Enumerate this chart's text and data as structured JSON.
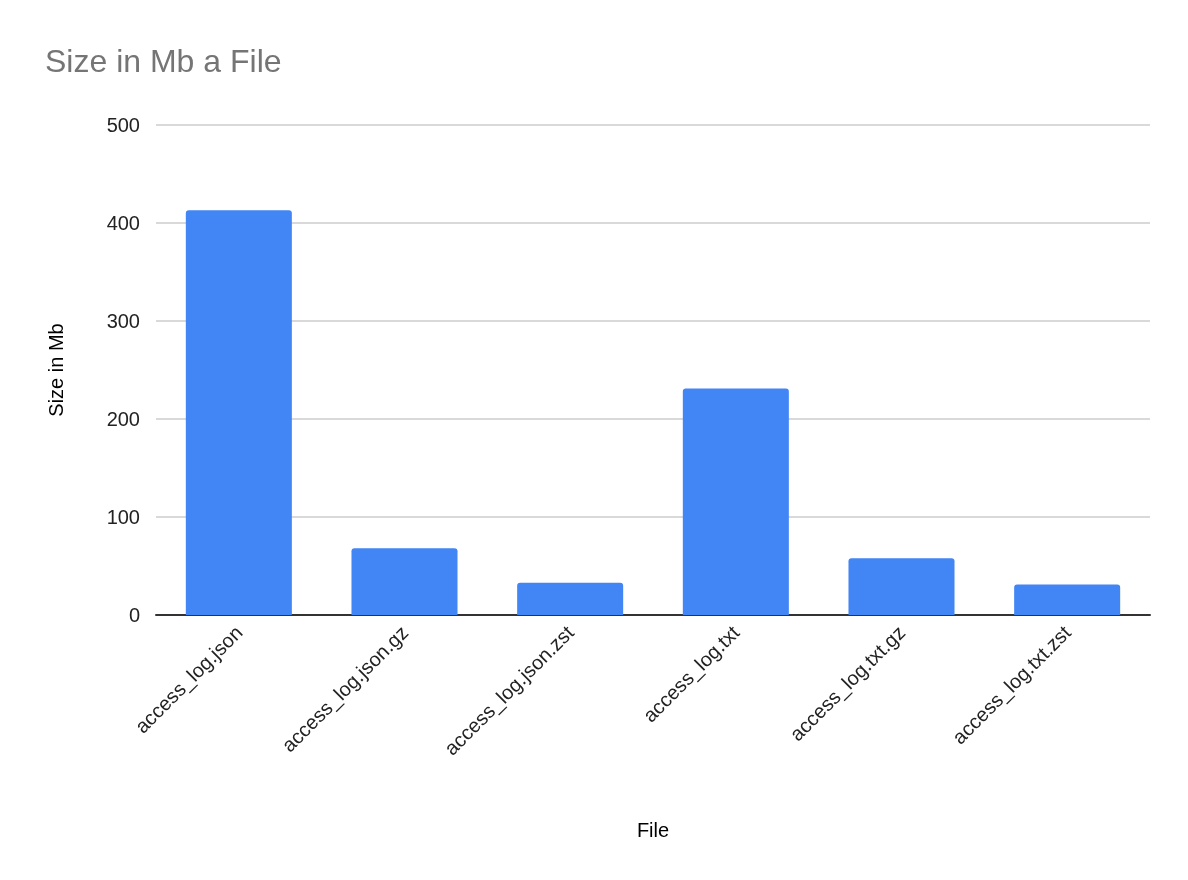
{
  "chart_data": {
    "type": "bar",
    "title": "Size in Mb a File",
    "xlabel": "File",
    "ylabel": "Size in Mb",
    "categories": [
      "access_log.json",
      "access_log.json.gz",
      "access_log.json.zst",
      "access_log.txt",
      "access_log.txt.gz",
      "access_log.txt.zst"
    ],
    "values": [
      413,
      68,
      33,
      231,
      58,
      31
    ],
    "color": "#4285f4",
    "ylim": [
      0,
      500
    ],
    "yticks": [
      0,
      100,
      200,
      300,
      400,
      500
    ],
    "grid": "y"
  }
}
